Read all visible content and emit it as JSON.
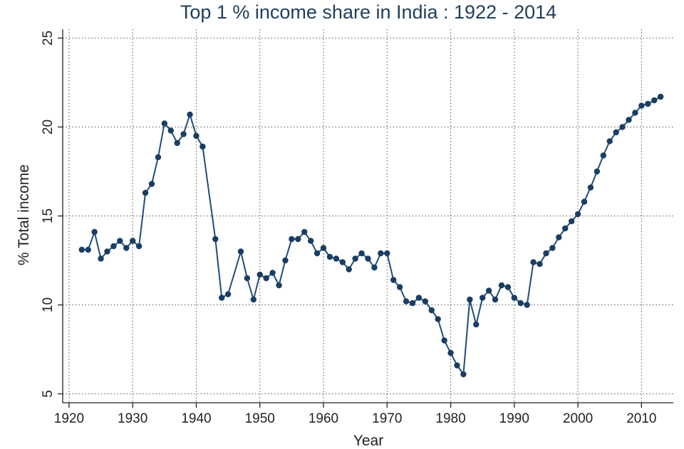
{
  "chart_data": {
    "type": "line",
    "title": "Top 1 % income share in India : 1922 - 2014",
    "xlabel": "Year",
    "ylabel": "% Total income",
    "xlim": [
      1919,
      2015
    ],
    "ylim": [
      4.5,
      25.5
    ],
    "xticks": [
      1920,
      1930,
      1940,
      1950,
      1960,
      1970,
      1980,
      1990,
      2000,
      2010
    ],
    "yticks": [
      5,
      10,
      15,
      20,
      25
    ],
    "grid": true,
    "legend": "none",
    "colors": {
      "line": "#1f4e79",
      "marker": "#1a3d63",
      "title": "#1f3f5c"
    },
    "series": [
      {
        "x": [
          1922,
          1923,
          1924,
          1925,
          1926,
          1927,
          1928,
          1929,
          1930,
          1931,
          1932,
          1933,
          1934,
          1935,
          1936,
          1937,
          1938,
          1939,
          1940,
          1941,
          1943,
          1944,
          1945,
          1947,
          1948,
          1949,
          1950,
          1951,
          1952,
          1953,
          1954,
          1955,
          1956,
          1957,
          1958,
          1959,
          1960,
          1961,
          1962,
          1963,
          1964,
          1965,
          1966,
          1967,
          1968,
          1969,
          1970,
          1971,
          1972,
          1973,
          1974,
          1975,
          1976,
          1977,
          1978,
          1979,
          1980,
          1981,
          1982,
          1983,
          1984,
          1985,
          1986,
          1987,
          1988,
          1989,
          1990,
          1991,
          1992,
          1993,
          1994,
          1995,
          1996,
          1997,
          1998,
          1999,
          2000,
          2001,
          2002,
          2003,
          2004,
          2005,
          2006,
          2007,
          2008,
          2009,
          2010,
          2011,
          2012,
          2013
        ],
        "y": [
          13.1,
          13.1,
          14.1,
          12.6,
          13.0,
          13.3,
          13.6,
          13.2,
          13.6,
          13.3,
          16.3,
          16.8,
          18.3,
          20.2,
          19.8,
          19.1,
          19.6,
          20.7,
          19.5,
          18.9,
          13.7,
          10.4,
          10.6,
          13.0,
          11.5,
          10.3,
          11.7,
          11.5,
          11.8,
          11.1,
          12.5,
          13.7,
          13.7,
          14.1,
          13.6,
          12.9,
          13.2,
          12.7,
          12.6,
          12.4,
          12.0,
          12.6,
          12.9,
          12.6,
          12.1,
          12.9,
          12.9,
          11.4,
          11.0,
          10.2,
          10.1,
          10.4,
          10.2,
          9.7,
          9.2,
          8.0,
          7.3,
          6.6,
          6.1,
          10.3,
          8.9,
          10.4,
          10.8,
          10.3,
          11.1,
          11.0,
          10.4,
          10.1,
          10.0,
          12.4,
          12.3,
          12.9,
          13.2,
          13.8,
          14.3,
          14.7,
          15.1,
          15.8,
          16.6,
          17.5,
          18.4,
          19.2,
          19.7,
          20.0,
          20.4,
          20.8,
          21.2,
          21.3,
          21.5,
          21.7
        ]
      }
    ]
  }
}
